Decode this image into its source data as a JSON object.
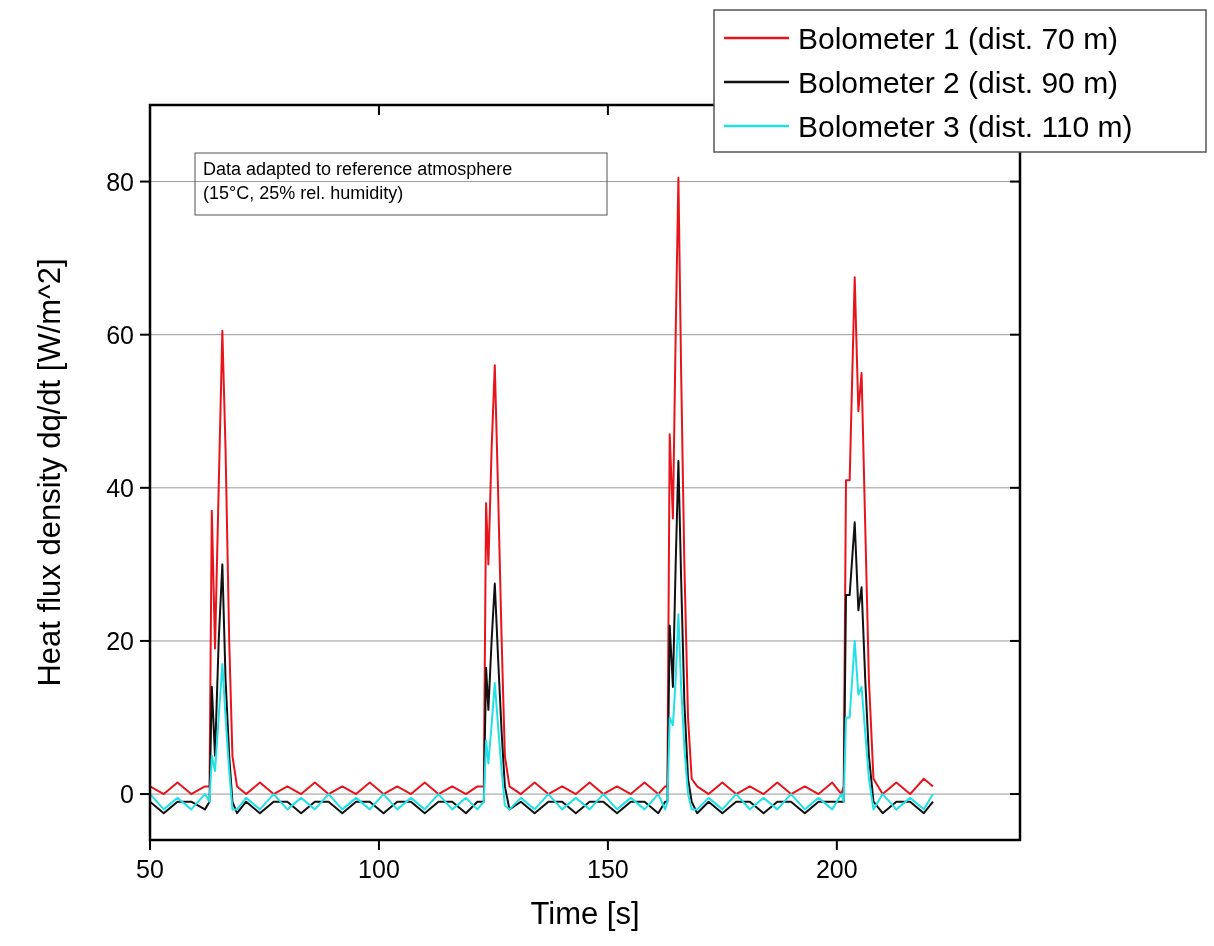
{
  "chart_data": {
    "type": "line",
    "xlabel": "Time [s]",
    "ylabel": "Heat flux density dq/dt [W/m^2]",
    "annotations": [
      "Data adapted to reference atmosphere\n(15°C, 25% rel. humidity)"
    ],
    "xlim": [
      50,
      240
    ],
    "xticks": [
      50,
      100,
      150,
      200
    ],
    "ylim": [
      -6,
      90
    ],
    "yticks": [
      0,
      20,
      40,
      60,
      80
    ],
    "grid": "y",
    "legend": "top right",
    "x": [
      50,
      53,
      56,
      59,
      62,
      63,
      63.5,
      64.2,
      65,
      65.8,
      66.5,
      67.3,
      68,
      69,
      71,
      74,
      77,
      80,
      83,
      86,
      89,
      92,
      95,
      98,
      101,
      104,
      107,
      110,
      113,
      116,
      119,
      121.5,
      122.9,
      123.4,
      123.9,
      124.6,
      125.3,
      126,
      126.8,
      127.5,
      128.5,
      131,
      134,
      137,
      140,
      143,
      146,
      149,
      152,
      155,
      158,
      161,
      162.5,
      163,
      163.5,
      164.2,
      164.8,
      165.4,
      166,
      166.7,
      167.5,
      168.3,
      169.5,
      172,
      175,
      178,
      181,
      184,
      187,
      190,
      193,
      196,
      199,
      201,
      201.5,
      202,
      202.8,
      203.9,
      204.7,
      205.4,
      206.2,
      207,
      208,
      210,
      213,
      216,
      219,
      221
    ],
    "series": [
      {
        "name": "Bolometer 1 (dist. 70 m)",
        "color": "#e8141c",
        "values": [
          1,
          0,
          1.5,
          0,
          1,
          1,
          37,
          19,
          40,
          60.5,
          45,
          20,
          5,
          1,
          0,
          1.5,
          0,
          1,
          0,
          1.5,
          0,
          1,
          0,
          1.5,
          0,
          1,
          0,
          1.5,
          0,
          1,
          0,
          1,
          1,
          38,
          30,
          45,
          56,
          40,
          20,
          5,
          1,
          0,
          1.5,
          0,
          1,
          0,
          1.5,
          0,
          1,
          0,
          1.5,
          0,
          1,
          1,
          47,
          36,
          60,
          80.5,
          55,
          30,
          10,
          2,
          1,
          0,
          1.5,
          0,
          1,
          0,
          1.5,
          0,
          1,
          0,
          1.5,
          0,
          1,
          41,
          41,
          67.5,
          50,
          55,
          35,
          15,
          2,
          0,
          1.5,
          0,
          2,
          1
        ]
      },
      {
        "name": "Bolometer 2 (dist. 90 m)",
        "color": "#111111",
        "values": [
          -1,
          -2.5,
          -1,
          -1,
          -2,
          -1,
          14,
          5,
          20,
          30,
          15,
          5,
          -1,
          -2.5,
          -1,
          -2.5,
          -1,
          -1,
          -2.5,
          -1,
          -1,
          -2.5,
          -1,
          -1,
          -2.5,
          -1,
          -1,
          -2.5,
          -1,
          -1,
          -2.5,
          -1,
          -1,
          16.5,
          11,
          20,
          27.5,
          18,
          8,
          1,
          -2,
          -1,
          -2.5,
          -1,
          -1,
          -2.5,
          -1,
          -1,
          -2.5,
          -1,
          -1,
          -2.5,
          -1,
          -1,
          22,
          14,
          30,
          43.5,
          28,
          12,
          2,
          -1,
          -2.5,
          -1,
          -2.5,
          -1,
          -1,
          -2.5,
          -1,
          -1,
          -2.5,
          -1,
          -1,
          -1,
          -1,
          26,
          26,
          35.5,
          24,
          27,
          15,
          5,
          -1,
          -2.5,
          -1,
          -1,
          -2.5,
          -1
        ]
      },
      {
        "name": "Bolometer 3 (dist. 110 m)",
        "color": "#22e0e8",
        "values": [
          0,
          -2,
          -0.5,
          -2,
          0,
          -1,
          5,
          3,
          10,
          17,
          10,
          3,
          -2,
          -2,
          -0.5,
          -2,
          0,
          -2,
          -0.5,
          -2,
          0,
          -2,
          -0.5,
          -2,
          0,
          -2,
          -0.5,
          -2,
          0,
          -2,
          -0.5,
          -2,
          -1,
          7,
          4,
          9,
          14.5,
          9,
          3,
          -1.5,
          -2,
          -0.5,
          -2,
          0,
          -2,
          -0.5,
          -2,
          0,
          -2,
          -0.5,
          -2,
          0,
          -2,
          -1,
          10,
          9,
          15,
          23.5,
          14,
          6,
          0,
          -2,
          -2,
          -0.5,
          -2,
          0,
          -2,
          -0.5,
          -2,
          0,
          -2,
          -0.5,
          -2,
          0,
          -1,
          10,
          10,
          20,
          13,
          14,
          8,
          2,
          -2,
          0,
          -2,
          -0.5,
          -2,
          0
        ]
      }
    ]
  }
}
